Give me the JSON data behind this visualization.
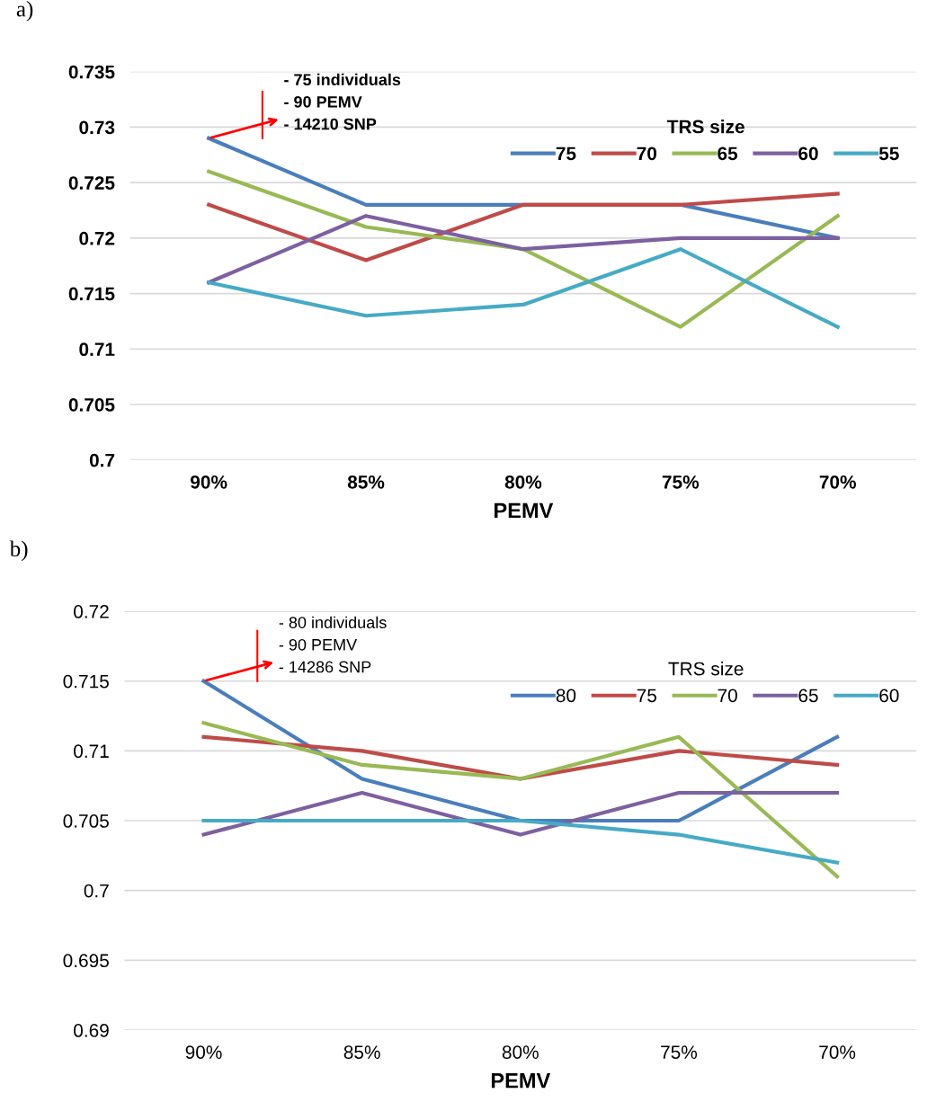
{
  "chart_data": [
    {
      "type": "line",
      "title": "a)",
      "xlabel": "PEMV",
      "legend_title": "TRS size",
      "categories": [
        "90%",
        "85%",
        "80%",
        "75%",
        "70%"
      ],
      "series": [
        {
          "name": "75",
          "color": "#4a7ebb",
          "values": [
            0.729,
            0.723,
            0.723,
            0.723,
            0.72
          ]
        },
        {
          "name": "70",
          "color": "#be4b48",
          "values": [
            0.723,
            0.718,
            0.723,
            0.723,
            0.724
          ]
        },
        {
          "name": "65",
          "color": "#98b954",
          "values": [
            0.726,
            0.721,
            0.719,
            0.712,
            0.722
          ]
        },
        {
          "name": "60",
          "color": "#7d60a0",
          "values": [
            0.716,
            0.722,
            0.719,
            0.72,
            0.72
          ]
        },
        {
          "name": "55",
          "color": "#46aac5",
          "values": [
            0.716,
            0.713,
            0.714,
            0.719,
            0.712
          ]
        }
      ],
      "ylim": [
        0.7,
        0.735
      ],
      "yticks": [
        0.7,
        0.705,
        0.71,
        0.715,
        0.72,
        0.725,
        0.73,
        0.735
      ],
      "grid": "y",
      "legend": "top right",
      "marker": "none",
      "line_style": "solid",
      "annotations": [
        {
          "text": "- 75 individuals\n- 90 PEMV\n- 14210 SNP",
          "x": "90%",
          "y": 0.729
        }
      ]
    },
    {
      "type": "line",
      "title": "b)",
      "xlabel": "PEMV",
      "legend_title": "TRS size",
      "categories": [
        "90%",
        "85%",
        "80%",
        "75%",
        "70%"
      ],
      "series": [
        {
          "name": "80",
          "color": "#4a7ebb",
          "values": [
            0.715,
            0.708,
            0.705,
            0.705,
            0.711
          ]
        },
        {
          "name": "75",
          "color": "#be4b48",
          "values": [
            0.711,
            0.71,
            0.708,
            0.71,
            0.709
          ]
        },
        {
          "name": "70",
          "color": "#98b954",
          "values": [
            0.712,
            0.709,
            0.708,
            0.711,
            0.701
          ]
        },
        {
          "name": "65",
          "color": "#7d60a0",
          "values": [
            0.704,
            0.707,
            0.704,
            0.707,
            0.707
          ]
        },
        {
          "name": "60",
          "color": "#46aac5",
          "values": [
            0.705,
            0.705,
            0.705,
            0.704,
            0.702
          ]
        }
      ],
      "ylim": [
        0.69,
        0.72
      ],
      "yticks": [
        0.69,
        0.695,
        0.7,
        0.705,
        0.71,
        0.715,
        0.72
      ],
      "grid": "y",
      "legend": "top right",
      "marker": "none",
      "line_style": "solid",
      "annotations": [
        {
          "text": "- 80 individuals\n- 90 PEMV\n- 14286 SNP",
          "x": "90%",
          "y": 0.715
        }
      ]
    }
  ]
}
